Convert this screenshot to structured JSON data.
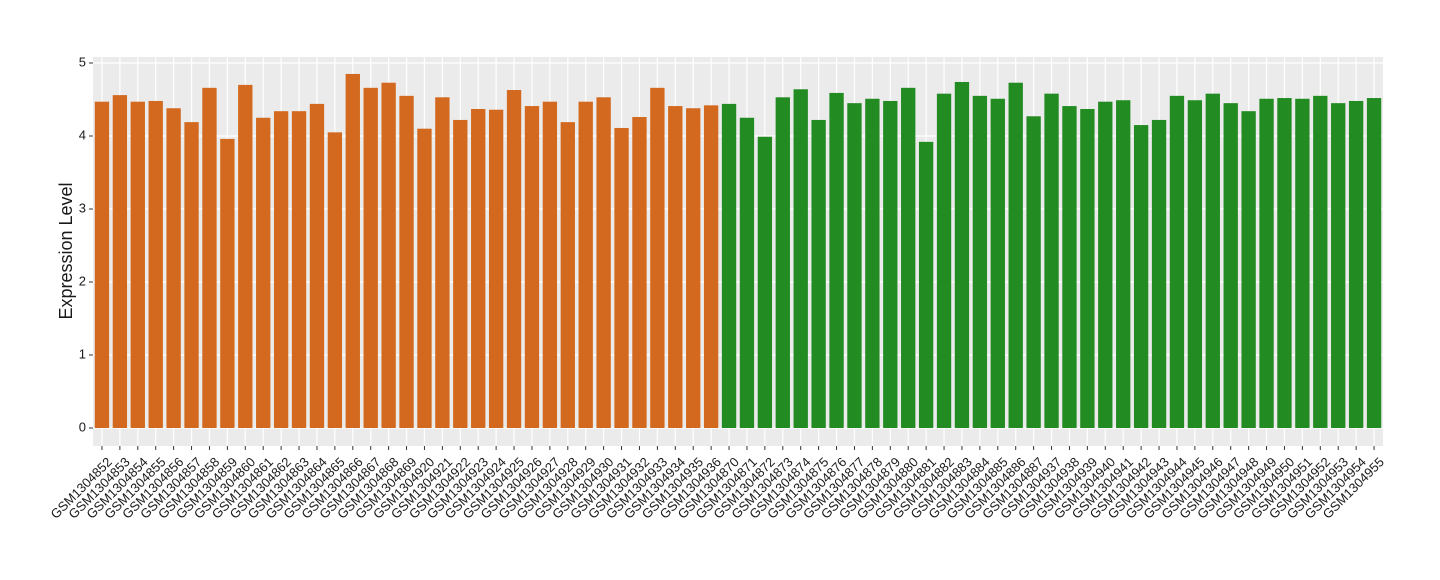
{
  "chart_data": {
    "type": "bar",
    "y_label": "Expression Level",
    "ylim": [
      0,
      5
    ],
    "yticks": [
      0,
      1,
      2,
      3,
      4,
      5
    ],
    "grid": true,
    "series": [
      {
        "color": "#d2691e",
        "categories": [
          "GSM1304852",
          "GSM1304853",
          "GSM1304854",
          "GSM1304855",
          "GSM1304856",
          "GSM1304857",
          "GSM1304858",
          "GSM1304859",
          "GSM1304860",
          "GSM1304861",
          "GSM1304862",
          "GSM1304863",
          "GSM1304864",
          "GSM1304865",
          "GSM1304866",
          "GSM1304867",
          "GSM1304868",
          "GSM1304869",
          "GSM1304920",
          "GSM1304921",
          "GSM1304922",
          "GSM1304923",
          "GSM1304924",
          "GSM1304925",
          "GSM1304926",
          "GSM1304927",
          "GSM1304928",
          "GSM1304929",
          "GSM1304930",
          "GSM1304931",
          "GSM1304932",
          "GSM1304933",
          "GSM1304934",
          "GSM1304935",
          "GSM1304936"
        ],
        "values": [
          4.47,
          4.56,
          4.47,
          4.48,
          4.38,
          4.19,
          4.66,
          3.96,
          4.7,
          4.25,
          4.34,
          4.34,
          4.44,
          4.05,
          4.85,
          4.66,
          4.73,
          4.55,
          4.1,
          4.53,
          4.22,
          4.37,
          4.36,
          4.63,
          4.41,
          4.47,
          4.19,
          4.47,
          4.53,
          4.11,
          4.26,
          4.66,
          4.41,
          4.38,
          4.42
        ]
      },
      {
        "color": "#228b22",
        "categories": [
          "GSM1304870",
          "GSM1304871",
          "GSM1304872",
          "GSM1304873",
          "GSM1304874",
          "GSM1304875",
          "GSM1304876",
          "GSM1304877",
          "GSM1304878",
          "GSM1304879",
          "GSM1304880",
          "GSM1304881",
          "GSM1304882",
          "GSM1304883",
          "GSM1304884",
          "GSM1304885",
          "GSM1304886",
          "GSM1304887",
          "GSM1304937",
          "GSM1304938",
          "GSM1304939",
          "GSM1304940",
          "GSM1304941",
          "GSM1304942",
          "GSM1304943",
          "GSM1304944",
          "GSM1304945",
          "GSM1304946",
          "GSM1304947",
          "GSM1304948",
          "GSM1304949",
          "GSM1304950",
          "GSM1304951",
          "GSM1304952",
          "GSM1304953",
          "GSM1304954",
          "GSM1304955"
        ],
        "values": [
          4.44,
          4.25,
          3.99,
          4.53,
          4.64,
          4.22,
          4.59,
          4.45,
          4.51,
          4.48,
          4.66,
          3.92,
          4.58,
          4.74,
          4.55,
          4.51,
          4.73,
          4.27,
          4.58,
          4.41,
          4.37,
          4.47,
          4.49,
          4.15,
          4.22,
          4.55,
          4.49,
          4.58,
          4.45,
          4.34,
          4.51,
          4.52,
          4.51,
          4.55,
          4.45,
          4.48,
          4.52
        ]
      }
    ]
  }
}
